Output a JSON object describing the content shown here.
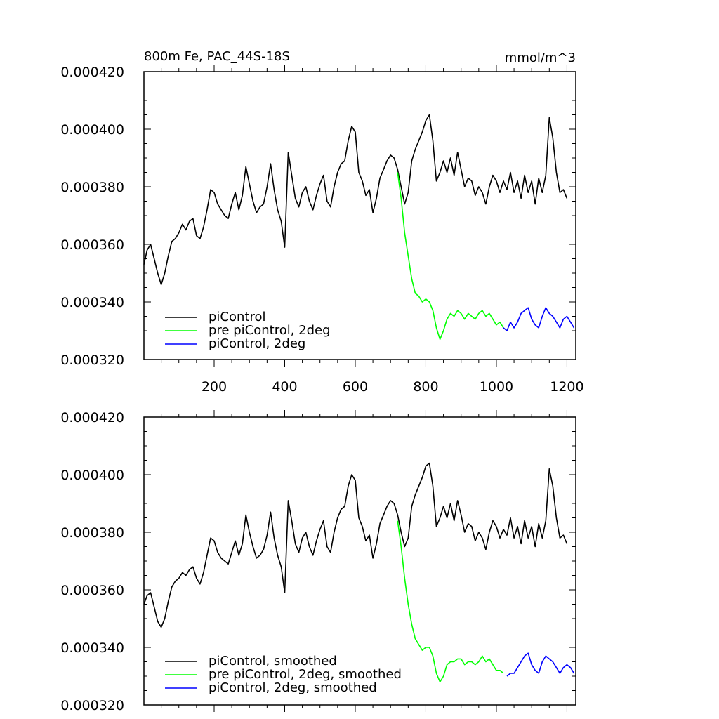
{
  "figure": {
    "title_left": "800m Fe, PAC_44S-18S",
    "title_right": "mmol/m^3"
  },
  "axes": {
    "y_ticks": [
      "0.000420",
      "0.000400",
      "0.000380",
      "0.000360",
      "0.000340",
      "0.000320"
    ],
    "x_ticks": [
      "200",
      "400",
      "600",
      "800",
      "1000",
      "1200"
    ]
  },
  "colors": {
    "black": "#000000",
    "green": "#00ff00",
    "blue": "#0000ff"
  },
  "chart_data": [
    {
      "type": "line",
      "title": "800m Fe, PAC_44S-18S",
      "units": "mmol/m^3",
      "xlim": [
        1,
        1225
      ],
      "ylim": [
        0.00032,
        0.00042
      ],
      "legend": [
        "piControl",
        "pre piControl, 2deg",
        "piControl, 2deg"
      ],
      "legend_position": "bottom-left",
      "series": [
        {
          "name": "piControl",
          "color": "#000000",
          "x": [
            1,
            10,
            20,
            30,
            40,
            50,
            60,
            70,
            80,
            90,
            100,
            110,
            120,
            130,
            140,
            150,
            160,
            170,
            180,
            190,
            200,
            210,
            220,
            230,
            240,
            250,
            260,
            270,
            280,
            290,
            300,
            310,
            320,
            330,
            340,
            350,
            360,
            370,
            380,
            390,
            400,
            410,
            420,
            430,
            440,
            450,
            460,
            470,
            480,
            490,
            500,
            510,
            520,
            530,
            540,
            550,
            560,
            570,
            580,
            590,
            600,
            610,
            620,
            630,
            640,
            650,
            660,
            670,
            680,
            690,
            700,
            710,
            720,
            730,
            740,
            750,
            760,
            770,
            780,
            790,
            800,
            810,
            820,
            830,
            840,
            850,
            860,
            870,
            880,
            890,
            900,
            910,
            920,
            930,
            940,
            950,
            960,
            970,
            980,
            990,
            1000,
            1010,
            1020,
            1030,
            1040,
            1050,
            1060,
            1070,
            1080,
            1090,
            1100,
            1110,
            1120,
            1130,
            1140,
            1150,
            1160,
            1170,
            1180,
            1190,
            1200
          ],
          "y": [
            0.000353,
            0.000358,
            0.00036,
            0.000355,
            0.00035,
            0.000346,
            0.00035,
            0.000356,
            0.000361,
            0.000362,
            0.000364,
            0.000367,
            0.000365,
            0.000368,
            0.000369,
            0.000363,
            0.000362,
            0.000366,
            0.000372,
            0.000379,
            0.000378,
            0.000374,
            0.000372,
            0.00037,
            0.000369,
            0.000374,
            0.000378,
            0.000372,
            0.000377,
            0.000387,
            0.000381,
            0.000375,
            0.000371,
            0.000373,
            0.000374,
            0.00038,
            0.000388,
            0.000379,
            0.000372,
            0.000368,
            0.000359,
            0.000392,
            0.000384,
            0.000376,
            0.000373,
            0.000378,
            0.00038,
            0.000375,
            0.000372,
            0.000377,
            0.000381,
            0.000384,
            0.000375,
            0.000373,
            0.00038,
            0.000385,
            0.000388,
            0.000389,
            0.000396,
            0.000401,
            0.000399,
            0.000385,
            0.000382,
            0.000377,
            0.000379,
            0.000371,
            0.000376,
            0.000383,
            0.000386,
            0.000389,
            0.000391,
            0.00039,
            0.000386,
            0.00038,
            0.000374,
            0.000378,
            0.000389,
            0.000393,
            0.000396,
            0.000399,
            0.000403,
            0.000405,
            0.000396,
            0.000382,
            0.000385,
            0.000389,
            0.000385,
            0.00039,
            0.000384,
            0.000392,
            0.000386,
            0.00038,
            0.000383,
            0.000382,
            0.000377,
            0.00038,
            0.000378,
            0.000374,
            0.00038,
            0.000384,
            0.000382,
            0.000378,
            0.000382,
            0.000379,
            0.000385,
            0.000378,
            0.000382,
            0.000376,
            0.000384,
            0.000378,
            0.000382,
            0.000374,
            0.000383,
            0.000378,
            0.000384,
            0.000404,
            0.000397,
            0.000385,
            0.000378,
            0.000379,
            0.000376
          ]
        },
        {
          "name": "pre piControl, 2deg",
          "color": "#00ff00",
          "x": [
            720,
            730,
            740,
            750,
            760,
            770,
            780,
            790,
            800,
            810,
            820,
            830,
            840,
            850,
            860,
            870,
            880,
            890,
            900,
            910,
            920,
            930,
            940,
            950,
            960,
            970,
            980,
            990,
            1000,
            1010,
            1020
          ],
          "y": [
            0.000385,
            0.000376,
            0.000364,
            0.000356,
            0.000348,
            0.000343,
            0.000342,
            0.00034,
            0.000341,
            0.00034,
            0.000337,
            0.000331,
            0.000327,
            0.00033,
            0.000334,
            0.000336,
            0.000335,
            0.000337,
            0.000336,
            0.000334,
            0.000336,
            0.000335,
            0.000334,
            0.000336,
            0.000337,
            0.000335,
            0.000336,
            0.000334,
            0.000332,
            0.000333,
            0.000331
          ]
        },
        {
          "name": "piControl, 2deg",
          "color": "#0000ff",
          "x": [
            1020,
            1030,
            1040,
            1050,
            1060,
            1070,
            1080,
            1090,
            1100,
            1110,
            1120,
            1130,
            1140,
            1150,
            1160,
            1170,
            1180,
            1190,
            1200,
            1210,
            1220
          ],
          "y": [
            0.000331,
            0.00033,
            0.000333,
            0.000331,
            0.000333,
            0.000336,
            0.000337,
            0.000338,
            0.000334,
            0.000332,
            0.000331,
            0.000335,
            0.000338,
            0.000336,
            0.000335,
            0.000333,
            0.000331,
            0.000334,
            0.000335,
            0.000333,
            0.000331
          ]
        }
      ]
    },
    {
      "type": "line",
      "xlim": [
        1,
        1225
      ],
      "ylim": [
        0.00032,
        0.00042
      ],
      "legend": [
        "piControl, smoothed",
        "pre piControl, 2deg, smoothed",
        "piControl, 2deg, smoothed"
      ],
      "legend_position": "bottom-left",
      "series": [
        {
          "name": "piControl, smoothed",
          "color": "#000000",
          "x": [
            1,
            10,
            20,
            30,
            40,
            50,
            60,
            70,
            80,
            90,
            100,
            110,
            120,
            130,
            140,
            150,
            160,
            170,
            180,
            190,
            200,
            210,
            220,
            230,
            240,
            250,
            260,
            270,
            280,
            290,
            300,
            310,
            320,
            330,
            340,
            350,
            360,
            370,
            380,
            390,
            400,
            410,
            420,
            430,
            440,
            450,
            460,
            470,
            480,
            490,
            500,
            510,
            520,
            530,
            540,
            550,
            560,
            570,
            580,
            590,
            600,
            610,
            620,
            630,
            640,
            650,
            660,
            670,
            680,
            690,
            700,
            710,
            720,
            730,
            740,
            750,
            760,
            770,
            780,
            790,
            800,
            810,
            820,
            830,
            840,
            850,
            860,
            870,
            880,
            890,
            900,
            910,
            920,
            930,
            940,
            950,
            960,
            970,
            980,
            990,
            1000,
            1010,
            1020,
            1030,
            1040,
            1050,
            1060,
            1070,
            1080,
            1090,
            1100,
            1110,
            1120,
            1130,
            1140,
            1150,
            1160,
            1170,
            1180,
            1190,
            1200
          ],
          "y": [
            0.000355,
            0.000358,
            0.000359,
            0.000354,
            0.000349,
            0.000347,
            0.00035,
            0.000356,
            0.000361,
            0.000363,
            0.000364,
            0.000366,
            0.000365,
            0.000367,
            0.000368,
            0.000364,
            0.000362,
            0.000366,
            0.000372,
            0.000378,
            0.000377,
            0.000373,
            0.000371,
            0.00037,
            0.000369,
            0.000373,
            0.000377,
            0.000372,
            0.000376,
            0.000386,
            0.00038,
            0.000375,
            0.000371,
            0.000372,
            0.000374,
            0.000379,
            0.000387,
            0.000378,
            0.000372,
            0.000368,
            0.000359,
            0.000391,
            0.000384,
            0.000376,
            0.000373,
            0.000378,
            0.00038,
            0.000375,
            0.000372,
            0.000377,
            0.000381,
            0.000384,
            0.000375,
            0.000373,
            0.00038,
            0.000385,
            0.000388,
            0.000389,
            0.000396,
            0.0004,
            0.000398,
            0.000385,
            0.000382,
            0.000377,
            0.000379,
            0.000371,
            0.000376,
            0.000383,
            0.000386,
            0.000389,
            0.000391,
            0.00039,
            0.000386,
            0.00038,
            0.000375,
            0.000378,
            0.000389,
            0.000393,
            0.000396,
            0.000399,
            0.000403,
            0.000404,
            0.000396,
            0.000382,
            0.000385,
            0.000389,
            0.000385,
            0.00039,
            0.000384,
            0.000391,
            0.000386,
            0.00038,
            0.000383,
            0.000382,
            0.000377,
            0.00038,
            0.000378,
            0.000374,
            0.00038,
            0.000384,
            0.000382,
            0.000378,
            0.000381,
            0.000379,
            0.000385,
            0.000378,
            0.000382,
            0.000376,
            0.000384,
            0.000378,
            0.000382,
            0.000375,
            0.000383,
            0.000378,
            0.000384,
            0.000402,
            0.000396,
            0.000385,
            0.000378,
            0.000379,
            0.000376
          ]
        },
        {
          "name": "pre piControl, 2deg, smoothed",
          "color": "#00ff00",
          "x": [
            720,
            730,
            740,
            750,
            760,
            770,
            780,
            790,
            800,
            810,
            820,
            830,
            840,
            850,
            860,
            870,
            880,
            890,
            900,
            910,
            920,
            930,
            940,
            950,
            960,
            970,
            980,
            990,
            1000,
            1010,
            1020
          ],
          "y": [
            0.000384,
            0.000375,
            0.000364,
            0.000355,
            0.000348,
            0.000343,
            0.000341,
            0.000339,
            0.00034,
            0.00034,
            0.000337,
            0.000331,
            0.000328,
            0.00033,
            0.000334,
            0.000335,
            0.000335,
            0.000336,
            0.000336,
            0.000334,
            0.000335,
            0.000335,
            0.000334,
            0.000335,
            0.000337,
            0.000335,
            0.000336,
            0.000334,
            0.000332,
            0.000332,
            0.000331
          ]
        },
        {
          "name": "piControl, 2deg, smoothed",
          "color": "#0000ff",
          "x": [
            1030,
            1040,
            1050,
            1060,
            1070,
            1080,
            1090,
            1100,
            1110,
            1120,
            1130,
            1140,
            1150,
            1160,
            1170,
            1180,
            1190,
            1200,
            1210,
            1220
          ],
          "y": [
            0.00033,
            0.000331,
            0.000331,
            0.000333,
            0.000335,
            0.000337,
            0.000338,
            0.000334,
            0.000332,
            0.000331,
            0.000335,
            0.000337,
            0.000336,
            0.000335,
            0.000333,
            0.000331,
            0.000333,
            0.000334,
            0.000333,
            0.000331
          ]
        }
      ]
    }
  ]
}
